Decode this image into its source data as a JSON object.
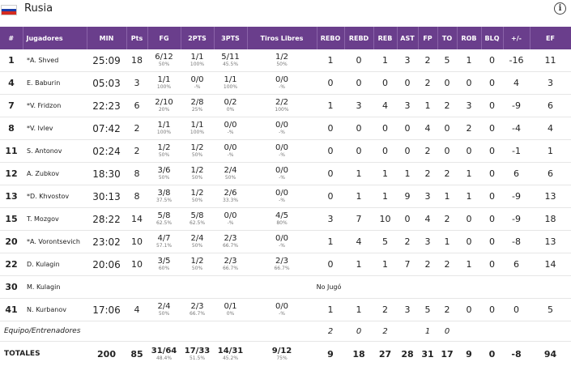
{
  "team": {
    "name": "Rusia",
    "flag_colors": [
      "#ffffff",
      "#1c3faa",
      "#d52b1e"
    ]
  },
  "info_icon": "i",
  "headers": [
    "#",
    "Jugadores",
    "MIN",
    "Pts",
    "FG",
    "2PTS",
    "3PTS",
    "Tiros Libres",
    "REBO",
    "REBD",
    "REB",
    "AST",
    "FP",
    "TO",
    "ROB",
    "BLQ",
    "+/-",
    "EF"
  ],
  "players": [
    {
      "num": "1",
      "name": "*A. Shved",
      "min": "25:09",
      "pts": "18",
      "fg": "6/12",
      "fg_p": "50%",
      "p2": "1/1",
      "p2_p": "100%",
      "p3": "5/11",
      "p3_p": "45.5%",
      "ft": "1/2",
      "ft_p": "50%",
      "rebo": "1",
      "rebd": "0",
      "reb": "1",
      "ast": "3",
      "fp": "2",
      "to": "5",
      "rob": "1",
      "blq": "0",
      "pm": "-16",
      "ef": "11"
    },
    {
      "num": "4",
      "name": "E. Baburin",
      "min": "05:03",
      "pts": "3",
      "fg": "1/1",
      "fg_p": "100%",
      "p2": "0/0",
      "p2_p": "-%",
      "p3": "1/1",
      "p3_p": "100%",
      "ft": "0/0",
      "ft_p": "-%",
      "rebo": "0",
      "rebd": "0",
      "reb": "0",
      "ast": "0",
      "fp": "2",
      "to": "0",
      "rob": "0",
      "blq": "0",
      "pm": "4",
      "ef": "3"
    },
    {
      "num": "7",
      "name": "*V. Fridzon",
      "min": "22:23",
      "pts": "6",
      "fg": "2/10",
      "fg_p": "20%",
      "p2": "2/8",
      "p2_p": "25%",
      "p3": "0/2",
      "p3_p": "0%",
      "ft": "2/2",
      "ft_p": "100%",
      "rebo": "1",
      "rebd": "3",
      "reb": "4",
      "ast": "3",
      "fp": "1",
      "to": "2",
      "rob": "3",
      "blq": "0",
      "pm": "-9",
      "ef": "6"
    },
    {
      "num": "8",
      "name": "*V. Ivlev",
      "min": "07:42",
      "pts": "2",
      "fg": "1/1",
      "fg_p": "100%",
      "p2": "1/1",
      "p2_p": "100%",
      "p3": "0/0",
      "p3_p": "-%",
      "ft": "0/0",
      "ft_p": "-%",
      "rebo": "0",
      "rebd": "0",
      "reb": "0",
      "ast": "0",
      "fp": "4",
      "to": "0",
      "rob": "2",
      "blq": "0",
      "pm": "-4",
      "ef": "4"
    },
    {
      "num": "11",
      "name": "S. Antonov",
      "min": "02:24",
      "pts": "2",
      "fg": "1/2",
      "fg_p": "50%",
      "p2": "1/2",
      "p2_p": "50%",
      "p3": "0/0",
      "p3_p": "-%",
      "ft": "0/0",
      "ft_p": "-%",
      "rebo": "0",
      "rebd": "0",
      "reb": "0",
      "ast": "0",
      "fp": "2",
      "to": "0",
      "rob": "0",
      "blq": "0",
      "pm": "-1",
      "ef": "1"
    },
    {
      "num": "12",
      "name": "A. Zubkov",
      "min": "18:30",
      "pts": "8",
      "fg": "3/6",
      "fg_p": "50%",
      "p2": "1/2",
      "p2_p": "50%",
      "p3": "2/4",
      "p3_p": "50%",
      "ft": "0/0",
      "ft_p": "-%",
      "rebo": "0",
      "rebd": "1",
      "reb": "1",
      "ast": "1",
      "fp": "2",
      "to": "2",
      "rob": "1",
      "blq": "0",
      "pm": "6",
      "ef": "6"
    },
    {
      "num": "13",
      "name": "*D. Khvostov",
      "min": "30:13",
      "pts": "8",
      "fg": "3/8",
      "fg_p": "37.5%",
      "p2": "1/2",
      "p2_p": "50%",
      "p3": "2/6",
      "p3_p": "33.3%",
      "ft": "0/0",
      "ft_p": "-%",
      "rebo": "0",
      "rebd": "1",
      "reb": "1",
      "ast": "9",
      "fp": "3",
      "to": "1",
      "rob": "1",
      "blq": "0",
      "pm": "-9",
      "ef": "13"
    },
    {
      "num": "15",
      "name": "T. Mozgov",
      "min": "28:22",
      "pts": "14",
      "fg": "5/8",
      "fg_p": "62.5%",
      "p2": "5/8",
      "p2_p": "62.5%",
      "p3": "0/0",
      "p3_p": "-%",
      "ft": "4/5",
      "ft_p": "80%",
      "rebo": "3",
      "rebd": "7",
      "reb": "10",
      "ast": "0",
      "fp": "4",
      "to": "2",
      "rob": "0",
      "blq": "0",
      "pm": "-9",
      "ef": "18"
    },
    {
      "num": "20",
      "name": "*A. Vorontsevich",
      "min": "23:02",
      "pts": "10",
      "fg": "4/7",
      "fg_p": "57.1%",
      "p2": "2/4",
      "p2_p": "50%",
      "p3": "2/3",
      "p3_p": "66.7%",
      "ft": "0/0",
      "ft_p": "-%",
      "rebo": "1",
      "rebd": "4",
      "reb": "5",
      "ast": "2",
      "fp": "3",
      "to": "1",
      "rob": "0",
      "blq": "0",
      "pm": "-8",
      "ef": "13"
    },
    {
      "num": "22",
      "name": "D. Kulagin",
      "min": "20:06",
      "pts": "10",
      "fg": "3/5",
      "fg_p": "60%",
      "p2": "1/2",
      "p2_p": "50%",
      "p3": "2/3",
      "p3_p": "66.7%",
      "ft": "2/3",
      "ft_p": "66.7%",
      "rebo": "0",
      "rebd": "1",
      "reb": "1",
      "ast": "7",
      "fp": "2",
      "to": "2",
      "rob": "1",
      "blq": "0",
      "pm": "6",
      "ef": "14"
    }
  ],
  "dnp": {
    "num": "30",
    "name": "M. Kulagin",
    "label": "No Jugó"
  },
  "last_player": {
    "num": "41",
    "name": "N. Kurbanov",
    "min": "17:06",
    "pts": "4",
    "fg": "2/4",
    "fg_p": "50%",
    "p2": "2/3",
    "p2_p": "66.7%",
    "p3": "0/1",
    "p3_p": "0%",
    "ft": "0/0",
    "ft_p": "-%",
    "rebo": "1",
    "rebd": "1",
    "reb": "2",
    "ast": "3",
    "fp": "5",
    "to": "2",
    "rob": "0",
    "blq": "0",
    "pm": "0",
    "ef": "5"
  },
  "equipo": {
    "label": "Equipo/Entrenadores",
    "rebo": "2",
    "rebd": "0",
    "reb": "2",
    "fp": "1",
    "to": "0"
  },
  "totals": {
    "label": "TOTALES",
    "min": "200",
    "pts": "85",
    "fg": "31/64",
    "fg_p": "48.4%",
    "p2": "17/33",
    "p2_p": "51.5%",
    "p3": "14/31",
    "p3_p": "45.2%",
    "ft": "9/12",
    "ft_p": "75%",
    "rebo": "9",
    "rebd": "18",
    "reb": "27",
    "ast": "28",
    "fp": "31",
    "to": "17",
    "rob": "9",
    "blq": "0",
    "pm": "-8",
    "ef": "94"
  }
}
